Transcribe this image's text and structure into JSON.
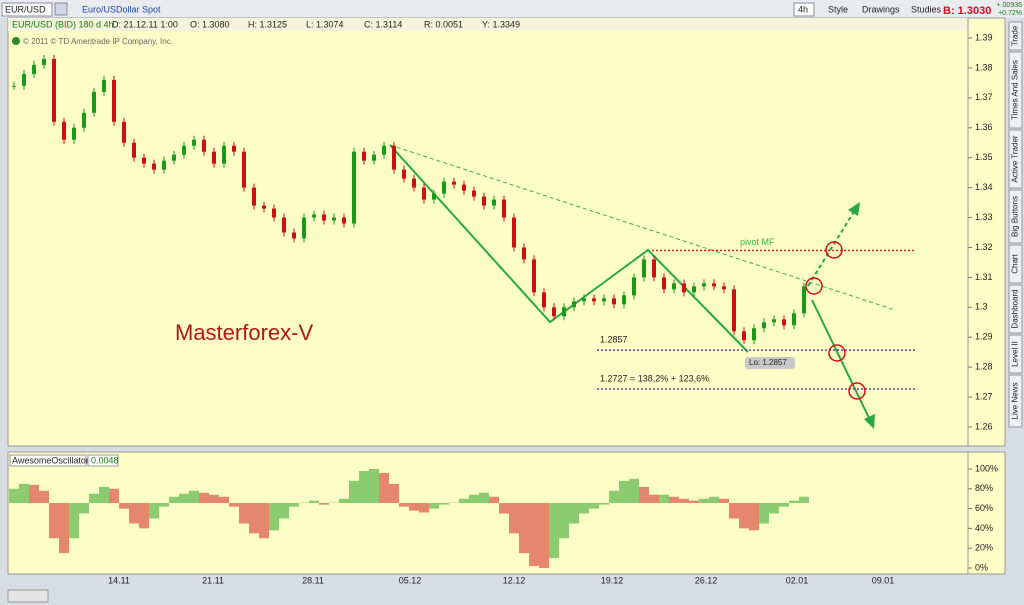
{
  "toolbar": {
    "symbol": "EUR/USD",
    "description": "Euro/USDollar Spot",
    "interval": "4h",
    "buttons": [
      "Style",
      "Drawings",
      "Studies"
    ],
    "bid": "B: 1.3030",
    "change": "+.00936",
    "change_pct": "+0.72%"
  },
  "info_bar": [
    "EUR/USD (BID) 180 d 4h",
    "D: 21.12.11 1:00",
    "O: 1.3080",
    "H: 1.3125",
    "L: 1.3074",
    "C: 1.3114",
    "R: 0.0051",
    "Y: 1.3349"
  ],
  "copyright": "© 2011 © TD Ameritrade IP Company, Inc.",
  "watermark": "Masterforex-V",
  "side_tabs": [
    "Trade",
    "Times And Sales",
    "Active Trader",
    "Big Buttons",
    "Chart",
    "Dashboard",
    "Level II",
    "Live News"
  ],
  "price_chart": {
    "type": "candlestick",
    "ylim": [
      1.26,
      1.39
    ],
    "yticks": [
      1.39,
      1.38,
      1.37,
      1.36,
      1.35,
      1.34,
      1.33,
      1.32,
      1.31,
      1.3,
      1.29,
      1.28,
      1.27,
      1.26
    ],
    "closes": [
      1.374,
      1.378,
      1.381,
      1.383,
      1.362,
      1.356,
      1.36,
      1.365,
      1.372,
      1.376,
      1.362,
      1.355,
      1.35,
      1.348,
      1.346,
      1.349,
      1.351,
      1.354,
      1.356,
      1.352,
      1.348,
      1.354,
      1.352,
      1.34,
      1.334,
      1.333,
      1.33,
      1.325,
      1.323,
      1.33,
      1.331,
      1.329,
      1.33,
      1.328,
      1.352,
      1.349,
      1.351,
      1.354,
      1.346,
      1.343,
      1.34,
      1.336,
      1.338,
      1.342,
      1.341,
      1.339,
      1.337,
      1.334,
      1.336,
      1.33,
      1.32,
      1.316,
      1.305,
      1.3,
      1.297,
      1.3,
      1.302,
      1.303,
      1.302,
      1.303,
      1.301,
      1.304,
      1.31,
      1.316,
      1.31,
      1.306,
      1.308,
      1.305,
      1.307,
      1.308,
      1.307,
      1.306,
      1.292,
      1.289,
      1.293,
      1.295,
      1.296,
      1.294,
      1.298,
      1.307
    ],
    "up_color": "#1a9a1a",
    "down_color": "#cc1111",
    "annotations": [
      {
        "text": "pivot MF",
        "level": 1.319
      },
      {
        "text": "1.2857",
        "level": 1.2857
      },
      {
        "text": "1.2727 = 138,2% + 123,6%",
        "level": 1.2727
      }
    ],
    "low_label": "Lo: 1.2857"
  },
  "oscillator": {
    "type": "bar",
    "name": "AwesomeOscillator",
    "value": "0.0048",
    "ylim": [
      0,
      100
    ],
    "yticks": [
      {
        "value": 100,
        "label": "100%"
      },
      {
        "value": 80,
        "label": "80%"
      },
      {
        "value": 60,
        "label": "60%"
      },
      {
        "value": 40,
        "label": "40%"
      },
      {
        "value": 20,
        "label": "20%"
      },
      {
        "value": 0,
        "label": "0%"
      }
    ],
    "values": [
      80,
      85,
      84,
      78,
      30,
      15,
      30,
      55,
      75,
      82,
      80,
      60,
      45,
      40,
      50,
      62,
      72,
      75,
      78,
      76,
      74,
      72,
      62,
      45,
      35,
      30,
      38,
      50,
      62,
      66,
      68,
      64,
      66,
      70,
      88,
      98,
      100,
      96,
      85,
      62,
      58,
      56,
      60,
      64,
      66,
      70,
      74,
      76,
      72,
      55,
      35,
      15,
      2,
      0,
      10,
      30,
      45,
      55,
      60,
      64,
      78,
      88,
      90,
      82,
      74,
      74,
      72,
      70,
      68,
      70,
      72,
      70,
      50,
      40,
      38,
      45,
      55,
      62,
      68,
      72
    ]
  },
  "dates": [
    "14.11",
    "21.11",
    "28.11",
    "05.12",
    "12.12",
    "19.12",
    "26.12",
    "02.01",
    "09.01"
  ]
}
